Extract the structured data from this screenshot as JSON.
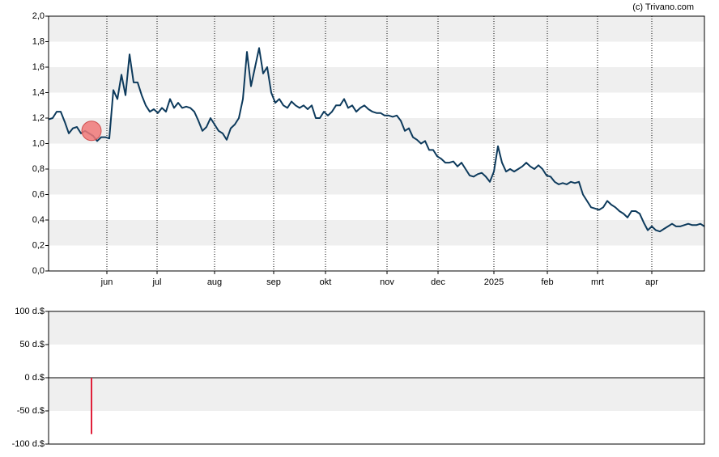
{
  "watermark": "(c) Trivano.com",
  "chart_data": [
    {
      "type": "line",
      "xlim": [
        0,
        162
      ],
      "xticks": [
        {
          "value": 14.4,
          "label": "jun"
        },
        {
          "value": 26.8,
          "label": "jul"
        },
        {
          "value": 41,
          "label": "aug"
        },
        {
          "value": 55.6,
          "label": "sep"
        },
        {
          "value": 68.4,
          "label": "okt"
        },
        {
          "value": 83.6,
          "label": "nov"
        },
        {
          "value": 96.2,
          "label": "dec"
        },
        {
          "value": 110,
          "label": "2025"
        },
        {
          "value": 123.2,
          "label": "feb"
        },
        {
          "value": 135.6,
          "label": "mrt"
        },
        {
          "value": 149,
          "label": "apr"
        }
      ],
      "ylim": [
        0,
        2
      ],
      "yticks": [
        {
          "value": 0,
          "label": "0,0"
        },
        {
          "value": 0.2,
          "label": "0,2"
        },
        {
          "value": 0.4,
          "label": "0,4"
        },
        {
          "value": 0.6,
          "label": "0,6"
        },
        {
          "value": 0.8,
          "label": "0,8"
        },
        {
          "value": 1,
          "label": "1,0"
        },
        {
          "value": 1.2,
          "label": "1,2"
        },
        {
          "value": 1.4,
          "label": "1,4"
        },
        {
          "value": 1.6,
          "label": "1,6"
        },
        {
          "value": 1.8,
          "label": "1,8"
        },
        {
          "value": 2,
          "label": "2,0"
        }
      ],
      "grid": "bands",
      "series": [
        {
          "color": "#0d3a5c",
          "values": [
            1.19,
            1.2,
            1.25,
            1.25,
            1.17,
            1.08,
            1.12,
            1.13,
            1.08,
            1.1,
            1.08,
            1.06,
            1.02,
            1.05,
            1.05,
            1.04,
            1.42,
            1.35,
            1.54,
            1.38,
            1.7,
            1.48,
            1.48,
            1.38,
            1.3,
            1.25,
            1.27,
            1.24,
            1.28,
            1.25,
            1.35,
            1.28,
            1.32,
            1.28,
            1.29,
            1.28,
            1.25,
            1.18,
            1.1,
            1.13,
            1.2,
            1.15,
            1.1,
            1.08,
            1.03,
            1.12,
            1.15,
            1.2,
            1.35,
            1.72,
            1.45,
            1.6,
            1.75,
            1.55,
            1.6,
            1.4,
            1.32,
            1.35,
            1.3,
            1.28,
            1.33,
            1.3,
            1.28,
            1.3,
            1.27,
            1.3,
            1.2,
            1.2,
            1.25,
            1.22,
            1.25,
            1.3,
            1.3,
            1.35,
            1.28,
            1.3,
            1.25,
            1.28,
            1.3,
            1.27,
            1.25,
            1.24,
            1.24,
            1.22,
            1.22,
            1.21,
            1.22,
            1.18,
            1.1,
            1.12,
            1.05,
            1.03,
            1.0,
            1.02,
            0.95,
            0.95,
            0.9,
            0.88,
            0.85,
            0.85,
            0.86,
            0.82,
            0.85,
            0.8,
            0.75,
            0.74,
            0.76,
            0.77,
            0.74,
            0.7,
            0.78,
            0.98,
            0.85,
            0.78,
            0.8,
            0.78,
            0.8,
            0.82,
            0.85,
            0.82,
            0.8,
            0.83,
            0.8,
            0.75,
            0.74,
            0.7,
            0.68,
            0.69,
            0.68,
            0.7,
            0.69,
            0.7,
            0.6,
            0.55,
            0.5,
            0.49,
            0.48,
            0.5,
            0.55,
            0.52,
            0.5,
            0.47,
            0.45,
            0.42,
            0.47,
            0.47,
            0.45,
            0.38,
            0.32,
            0.35,
            0.32,
            0.31,
            0.33,
            0.35,
            0.37,
            0.35,
            0.35,
            0.36,
            0.37,
            0.36,
            0.36,
            0.37,
            0.35
          ]
        }
      ],
      "marker": {
        "x": 10.6,
        "value": 1.1,
        "color": "#f07878"
      }
    },
    {
      "type": "bar",
      "xlim": [
        0,
        162
      ],
      "ylim": [
        -100,
        100
      ],
      "yticks": [
        {
          "value": -100,
          "label": "-100 d.$"
        },
        {
          "value": -50,
          "label": "-50 d.$"
        },
        {
          "value": 0,
          "label": "0 d.$"
        },
        {
          "value": 50,
          "label": "50 d.$"
        },
        {
          "value": 100,
          "label": "100 d.$"
        }
      ],
      "grid": "bands",
      "series": [
        {
          "color": "#e0203a",
          "x": [
            10.6
          ],
          "values": [
            -85
          ]
        }
      ]
    }
  ]
}
